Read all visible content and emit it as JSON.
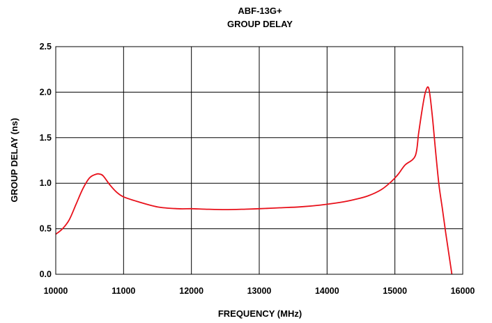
{
  "chart_data": {
    "type": "line",
    "title": "ABF-13G+",
    "subtitle": "GROUP DELAY",
    "xlabel": "FREQUENCY (MHz)",
    "ylabel": "GROUP DELAY (ns)",
    "xlim": [
      10000,
      16000
    ],
    "ylim": [
      0,
      2.5
    ],
    "xticks": [
      "10000",
      "11000",
      "12000",
      "13000",
      "14000",
      "15000",
      "16000"
    ],
    "yticks": [
      "0.0",
      "0.5",
      "1.0",
      "1.5",
      "2.0",
      "2.5"
    ],
    "grid": true,
    "legend": "none",
    "series": [
      {
        "color": "#e8101a",
        "x": [
          10000,
          10100,
          10200,
          10300,
          10400,
          10500,
          10600,
          10650,
          10700,
          10800,
          10900,
          11000,
          11200,
          11500,
          11800,
          12000,
          12200,
          12500,
          12800,
          13000,
          13300,
          13600,
          13900,
          14200,
          14400,
          14600,
          14800,
          14950,
          15050,
          15150,
          15300,
          15350,
          15400,
          15450,
          15500,
          15550,
          15600,
          15650,
          15700,
          15750,
          15790,
          15820,
          15840
        ],
        "y": [
          0.44,
          0.5,
          0.6,
          0.77,
          0.94,
          1.06,
          1.1,
          1.1,
          1.08,
          0.98,
          0.9,
          0.85,
          0.8,
          0.74,
          0.72,
          0.72,
          0.715,
          0.71,
          0.715,
          0.72,
          0.73,
          0.74,
          0.76,
          0.79,
          0.82,
          0.86,
          0.93,
          1.02,
          1.1,
          1.2,
          1.3,
          1.55,
          1.8,
          2.0,
          2.04,
          1.75,
          1.35,
          0.98,
          0.72,
          0.45,
          0.25,
          0.1,
          0.0
        ]
      }
    ]
  }
}
